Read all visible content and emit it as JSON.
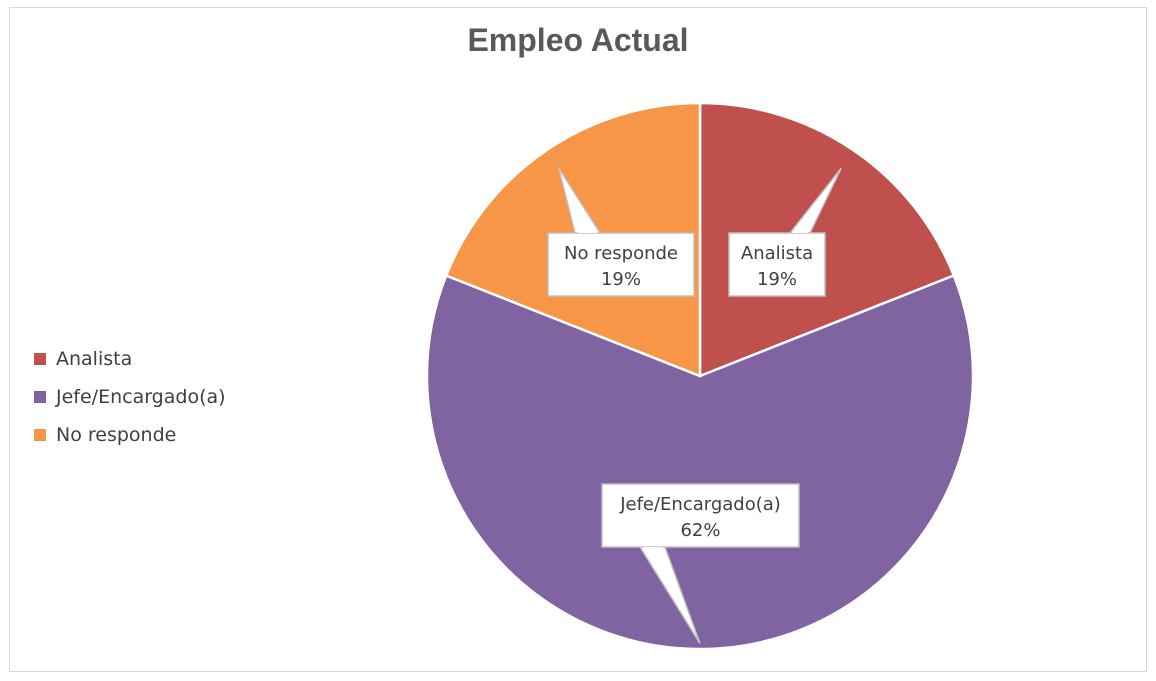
{
  "chart_data": {
    "type": "pie",
    "title": "Empleo Actual",
    "categories": [
      "Analista",
      "Jefe/Encargado(a)",
      "No responde"
    ],
    "values": [
      19,
      62,
      19
    ],
    "data_labels": [
      {
        "name": "Analista",
        "percent": "19%"
      },
      {
        "name": "Jefe/Encargado(a)",
        "percent": "62%"
      },
      {
        "name": "No responde",
        "percent": "19%"
      }
    ],
    "colors": [
      "#C0504D",
      "#8064A2",
      "#F79646"
    ],
    "legend_position": "left"
  }
}
